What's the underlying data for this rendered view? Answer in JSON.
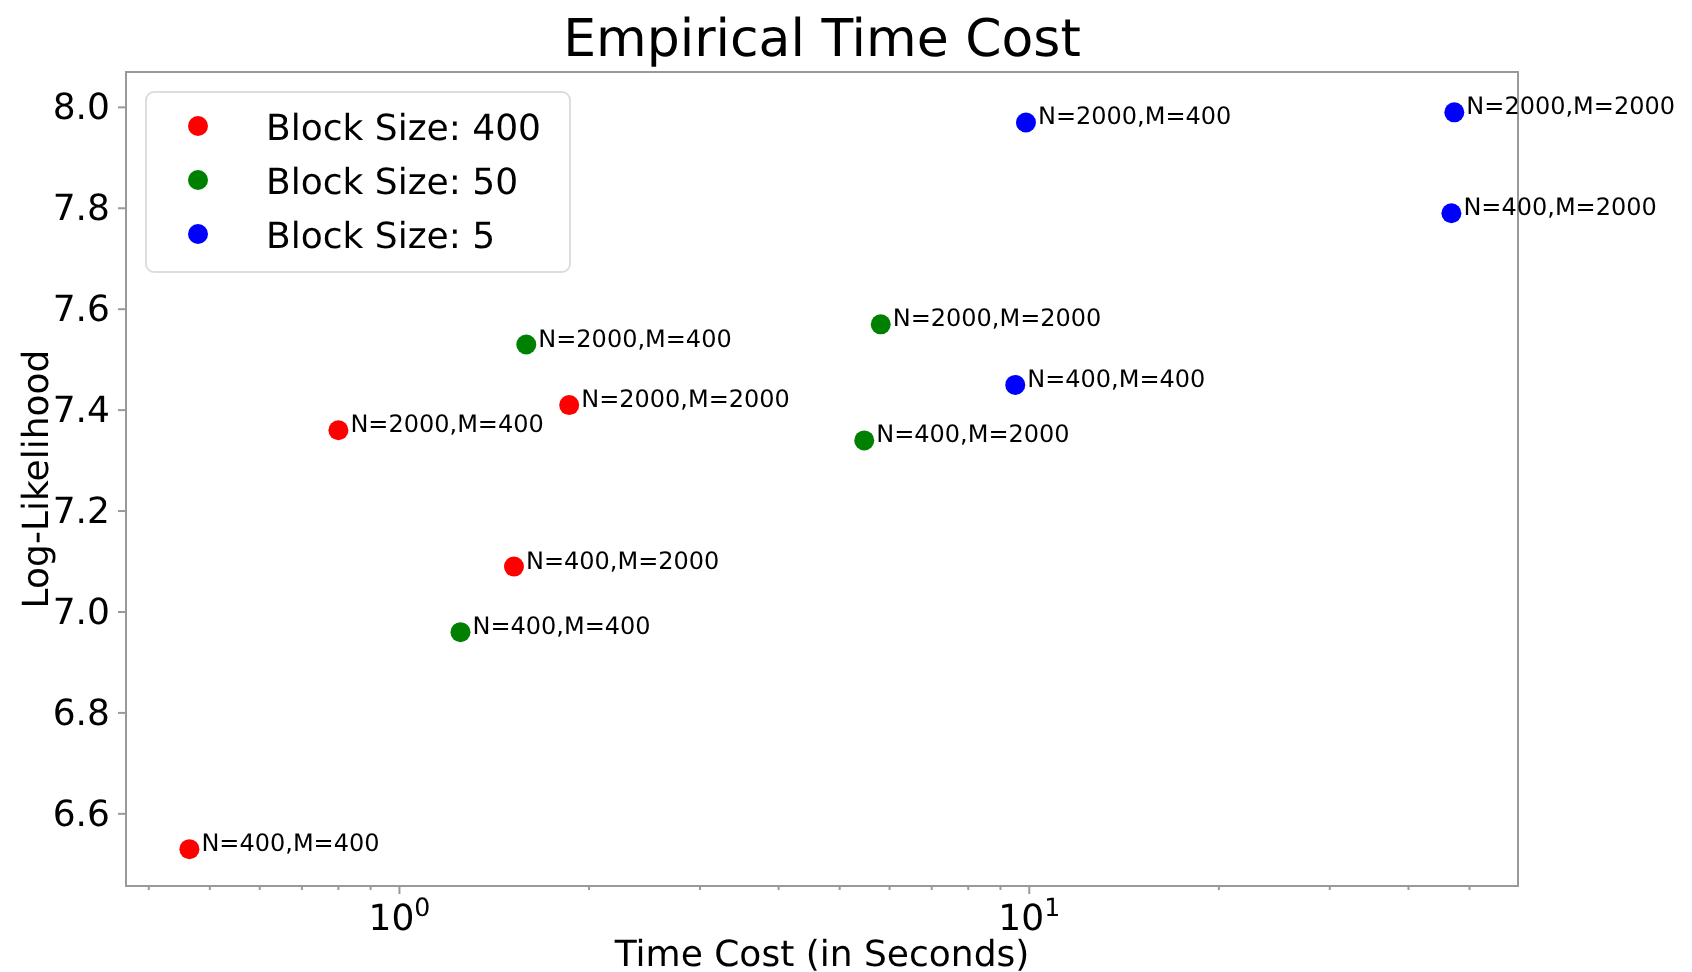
{
  "chart_data": {
    "type": "scatter",
    "title": "Empirical Time Cost",
    "xlabel": "Time Cost (in Seconds)",
    "ylabel": "Log-Likelihood",
    "log": "x",
    "marker": "circle",
    "grid": false,
    "legend": "top left",
    "xlim": [
      0.368,
      59.7
    ],
    "ylim": [
      6.457,
      8.07
    ],
    "xticks": [
      {
        "value": 0.4,
        "label": null
      },
      {
        "value": 0.5,
        "label": null
      },
      {
        "value": 0.6,
        "label": null
      },
      {
        "value": 0.7,
        "label": null
      },
      {
        "value": 0.8,
        "label": null
      },
      {
        "value": 0.9,
        "label": null
      },
      {
        "value": 1,
        "label": "10$^{0}$"
      },
      {
        "value": 2,
        "label": null
      },
      {
        "value": 3,
        "label": null
      },
      {
        "value": 4,
        "label": null
      },
      {
        "value": 5,
        "label": null
      },
      {
        "value": 6,
        "label": null
      },
      {
        "value": 7,
        "label": null
      },
      {
        "value": 8,
        "label": null
      },
      {
        "value": 9,
        "label": null
      },
      {
        "value": 10,
        "label": "10$^{1}$"
      },
      {
        "value": 20,
        "label": null
      },
      {
        "value": 30,
        "label": null
      },
      {
        "value": 40,
        "label": null
      },
      {
        "value": 50,
        "label": null
      }
    ],
    "yticks": [
      {
        "value": 6.6,
        "label": "6.6"
      },
      {
        "value": 6.8,
        "label": "6.8"
      },
      {
        "value": 7.0,
        "label": "7.0"
      },
      {
        "value": 7.2,
        "label": "7.2"
      },
      {
        "value": 7.4,
        "label": "7.4"
      },
      {
        "value": 7.6,
        "label": "7.6"
      },
      {
        "value": 7.8,
        "label": "7.8"
      },
      {
        "value": 8.0,
        "label": "8.0"
      }
    ],
    "series": [
      {
        "name": "Block Size: 400",
        "color": "#ff0000",
        "x": [
          0.464,
          0.8,
          1.86,
          1.52
        ],
        "values": [
          6.53,
          7.36,
          7.41,
          7.09
        ]
      },
      {
        "name": "Block Size: 50",
        "color": "#008000",
        "x": [
          1.59,
          1.25,
          5.81,
          5.47
        ],
        "values": [
          7.53,
          6.96,
          7.57,
          7.34
        ]
      },
      {
        "name": "Block Size: 5",
        "color": "#0000ff",
        "x": [
          9.88,
          47.3,
          46.8,
          9.5
        ],
        "values": [
          7.97,
          7.99,
          7.79,
          7.45
        ]
      }
    ],
    "annotations": [
      {
        "text": "N=400,M=400",
        "x": 0.464,
        "y": 6.53
      },
      {
        "text": "N=2000,M=400",
        "x": 0.8,
        "y": 7.36
      },
      {
        "text": "N=2000,M=2000",
        "x": 1.86,
        "y": 7.41
      },
      {
        "text": "N=400,M=2000",
        "x": 1.52,
        "y": 7.09
      },
      {
        "text": "N=2000,M=400",
        "x": 1.59,
        "y": 7.53
      },
      {
        "text": "N=400,M=400",
        "x": 1.25,
        "y": 6.96
      },
      {
        "text": "N=2000,M=2000",
        "x": 5.81,
        "y": 7.57
      },
      {
        "text": "N=400,M=2000",
        "x": 5.47,
        "y": 7.34
      },
      {
        "text": "N=2000,M=400",
        "x": 9.88,
        "y": 7.97
      },
      {
        "text": "N=2000,M=2000",
        "x": 47.3,
        "y": 7.99
      },
      {
        "text": "N=400,M=2000",
        "x": 46.8,
        "y": 7.79
      },
      {
        "text": "N=400,M=400",
        "x": 9.5,
        "y": 7.45
      }
    ]
  }
}
